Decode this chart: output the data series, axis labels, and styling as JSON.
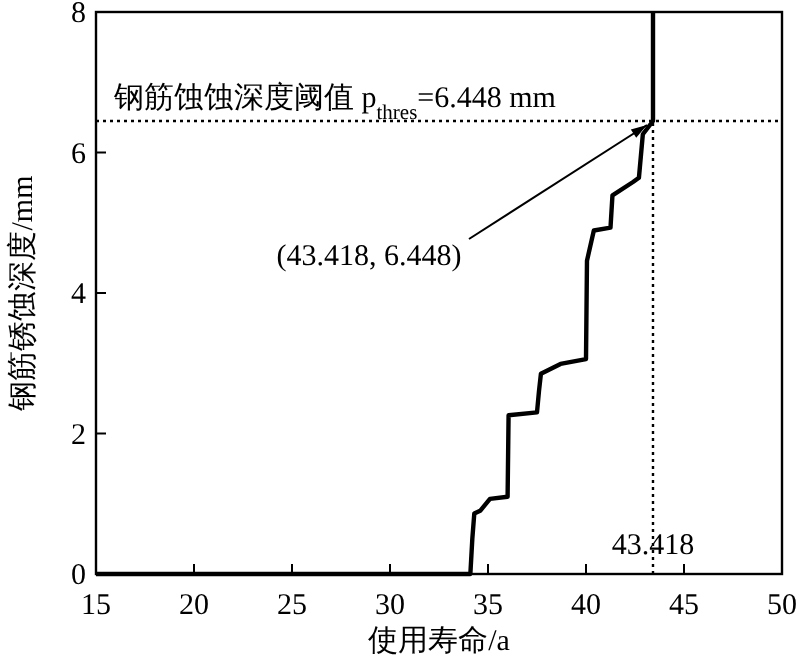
{
  "chart_data": {
    "type": "line",
    "xlabel": "使用寿命/a",
    "ylabel": "钢筋锈蚀深度/mm",
    "xlim": [
      15,
      50
    ],
    "ylim": [
      0,
      8
    ],
    "xticks": [
      15,
      20,
      25,
      30,
      35,
      40,
      45,
      50
    ],
    "yticks": [
      0,
      2,
      4,
      6,
      8
    ],
    "grid": false,
    "series": [
      {
        "color": "#000000",
        "line_style": "solid",
        "x": [
          15,
          34.1,
          34.2,
          34.3,
          34.6,
          35.1,
          36.0,
          36.05,
          37.5,
          37.6,
          37.7,
          38.7,
          40.0,
          40.05,
          40.4,
          41.25,
          41.35,
          42.4,
          42.7,
          42.9,
          43.418,
          43.418
        ],
        "values": [
          0,
          0,
          0.5,
          0.86,
          0.9,
          1.07,
          1.1,
          2.26,
          2.3,
          2.6,
          2.85,
          2.99,
          3.06,
          4.46,
          4.89,
          4.93,
          5.39,
          5.58,
          5.64,
          6.26,
          6.448,
          8
        ]
      }
    ],
    "ref_lines": [
      {
        "axis": "y",
        "value": 6.448,
        "label": "钢筋蚀蚀深度阈值 p$_{thres}$=6.448 mm",
        "color": "#000000",
        "line_style": "dotted"
      },
      {
        "axis": "x",
        "value": 43.418,
        "label": "43.418",
        "color": "#000000",
        "line_style": "dotted"
      }
    ],
    "annotations": [
      {
        "text": "(43.418, 6.448)",
        "x": 43.418,
        "y": 6.448
      }
    ]
  }
}
